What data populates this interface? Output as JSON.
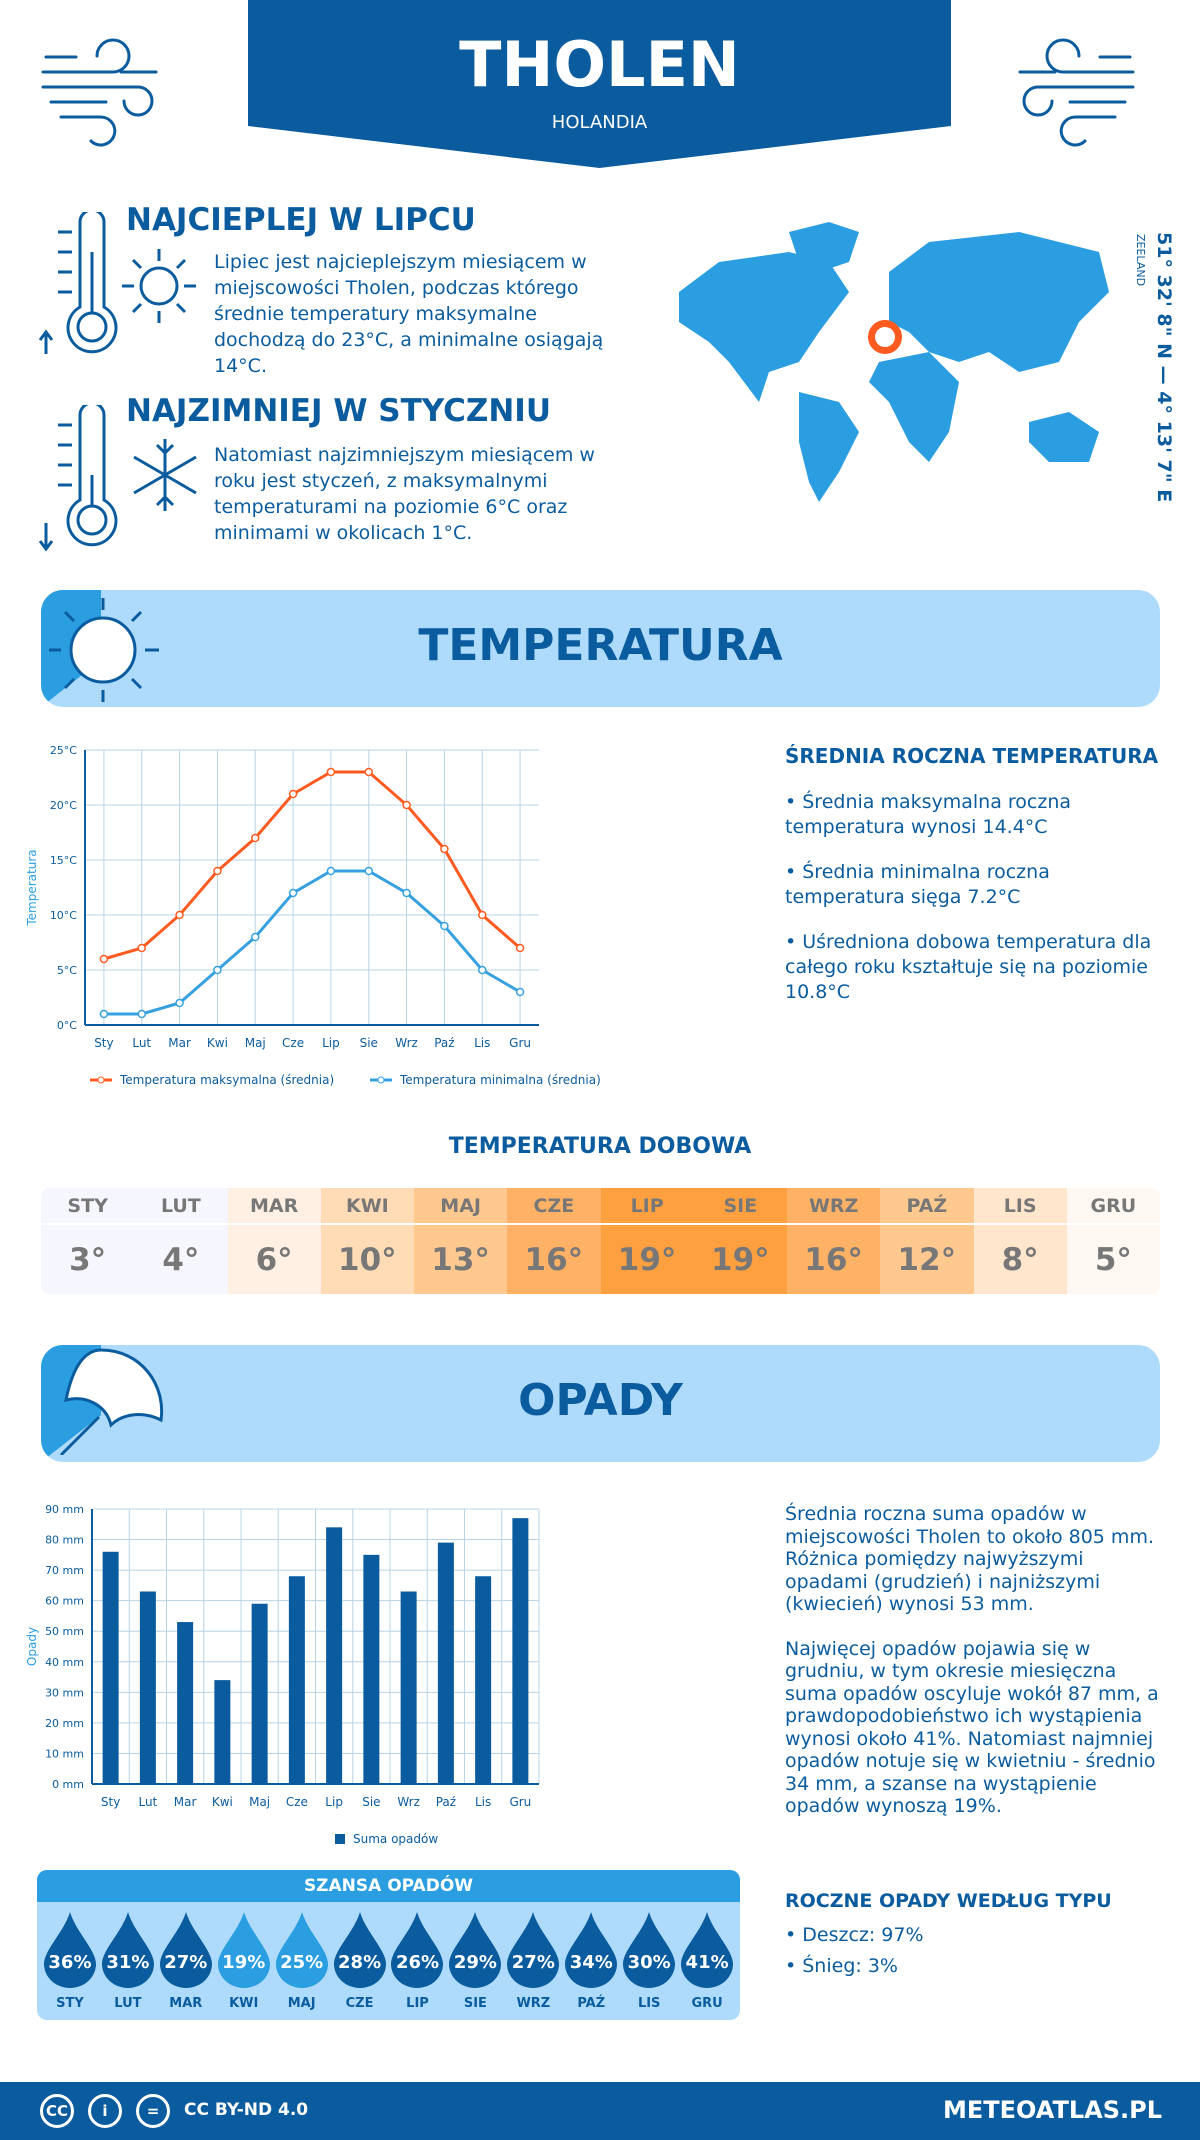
{
  "header": {
    "title": "THOLEN",
    "country": "HOLANDIA"
  },
  "warmest": {
    "title": "NAJCIEPLEJ W LIPCU",
    "text": "Lipiec jest najcieplejszym miesiącem w miejscowości Tholen, podczas którego średnie temperatury maksymalne dochodzą do 23°C, a minimalne osiągają 14°C."
  },
  "coldest": {
    "title": "NAJZIMNIEJ W STYCZNIU",
    "text": "Natomiast najzimniejszym miesiącem w roku jest styczeń, z maksymalnymi temperaturami na poziomie 6°C oraz minimami w okolicach 1°C."
  },
  "location": {
    "coords": "51° 32' 8\" N — 4° 13' 7\" E",
    "region": "ZEELAND"
  },
  "temperature": {
    "banner": "TEMPERATURA",
    "side_title": "ŚREDNIA ROCZNA TEMPERATURA",
    "bullets": [
      "• Średnia maksymalna roczna temperatura wynosi 14.4°C",
      "• Średnia minimalna roczna temperatura sięga 7.2°C",
      "• Uśredniona dobowa temperatura dla całego roku kształtuje się na poziomie 10.8°C"
    ]
  },
  "chart_data": [
    {
      "type": "line",
      "ylabel": "Temperatura",
      "categories": [
        "Sty",
        "Lut",
        "Mar",
        "Kwi",
        "Maj",
        "Cze",
        "Lip",
        "Sie",
        "Wrz",
        "Paź",
        "Lis",
        "Gru"
      ],
      "yticks": [
        "0°C",
        "5°C",
        "10°C",
        "15°C",
        "20°C",
        "25°C"
      ],
      "ylim": [
        0,
        25
      ],
      "grid": true,
      "legend": "bottom",
      "series": [
        {
          "name": "Temperatura maksymalna (średnia)",
          "color": "#ff5a1f",
          "values": [
            6,
            7,
            10,
            14,
            17,
            21,
            23,
            23,
            20,
            16,
            10,
            7
          ]
        },
        {
          "name": "Temperatura minimalna (średnia)",
          "color": "#36a0e0",
          "values": [
            1,
            1,
            2,
            5,
            8,
            12,
            14,
            14,
            12,
            9,
            5,
            3
          ]
        }
      ]
    },
    {
      "type": "bar",
      "ylabel": "Opady",
      "categories": [
        "Sty",
        "Lut",
        "Mar",
        "Kwi",
        "Maj",
        "Cze",
        "Lip",
        "Sie",
        "Wrz",
        "Paź",
        "Lis",
        "Gru"
      ],
      "yticks": [
        "0 mm",
        "10 mm",
        "20 mm",
        "30 mm",
        "40 mm",
        "50 mm",
        "60 mm",
        "70 mm",
        "80 mm",
        "90 mm"
      ],
      "ylim": [
        0,
        90
      ],
      "grid": true,
      "legend": "bottom",
      "series": [
        {
          "name": "Suma opadów",
          "color": "#0b5c9e",
          "values": [
            76,
            63,
            53,
            34,
            59,
            68,
            84,
            75,
            63,
            79,
            68,
            87
          ]
        }
      ]
    }
  ],
  "daily": {
    "title": "TEMPERATURA DOBOWA",
    "months": [
      {
        "m": "STY",
        "v": "3°",
        "c": "#f6f6fe"
      },
      {
        "m": "LUT",
        "v": "4°",
        "c": "#f6f6fe"
      },
      {
        "m": "MAR",
        "v": "6°",
        "c": "#fff0e3"
      },
      {
        "m": "KWI",
        "v": "10°",
        "c": "#ffdbb6"
      },
      {
        "m": "MAJ",
        "v": "13°",
        "c": "#ffc88e"
      },
      {
        "m": "CZE",
        "v": "16°",
        "c": "#ffb266"
      },
      {
        "m": "LIP",
        "v": "19°",
        "c": "#ffa040"
      },
      {
        "m": "SIE",
        "v": "19°",
        "c": "#ffa040"
      },
      {
        "m": "WRZ",
        "v": "16°",
        "c": "#ffb266"
      },
      {
        "m": "PAŹ",
        "v": "12°",
        "c": "#ffc88e"
      },
      {
        "m": "LIS",
        "v": "8°",
        "c": "#ffe6cd"
      },
      {
        "m": "GRU",
        "v": "5°",
        "c": "#fff8f2"
      }
    ]
  },
  "precip": {
    "banner": "OPADY",
    "text1": "Średnia roczna suma opadów w miejscowości Tholen to około 805 mm. Różnica pomiędzy najwyższymi opadami (grudzień) i najniższymi (kwiecień) wynosi 53 mm.",
    "text2": "Najwięcej opadów pojawia się w grudniu, w tym okresie miesięczna suma opadów oscyluje wokół 87 mm, a prawdopodobieństwo ich wystąpienia wynosi około 41%. Natomiast najmniej opadów notuje się w kwietniu - średnio 34 mm, a szanse na wystąpienie opadów wynoszą 19%.",
    "type_title": "ROCZNE OPADY WEDŁUG TYPU",
    "types": [
      "• Deszcz: 97%",
      "• Śnieg: 3%"
    ]
  },
  "chance": {
    "title": "SZANSA OPADÓW",
    "items": [
      {
        "m": "STY",
        "v": "36%"
      },
      {
        "m": "LUT",
        "v": "31%"
      },
      {
        "m": "MAR",
        "v": "27%"
      },
      {
        "m": "KWI",
        "v": "19%",
        "light": true
      },
      {
        "m": "MAJ",
        "v": "25%",
        "light": true
      },
      {
        "m": "CZE",
        "v": "28%"
      },
      {
        "m": "LIP",
        "v": "26%"
      },
      {
        "m": "SIE",
        "v": "29%"
      },
      {
        "m": "WRZ",
        "v": "27%"
      },
      {
        "m": "PAŹ",
        "v": "34%"
      },
      {
        "m": "LIS",
        "v": "30%"
      },
      {
        "m": "GRU",
        "v": "41%"
      }
    ]
  },
  "footer": {
    "license": "CC BY-ND 4.0",
    "site": "METEOATLAS.PL",
    "cc_icons": [
      "CC",
      "i",
      "="
    ]
  },
  "colors": {
    "dark_blue": "#0b5c9e",
    "light_blue": "#2a9ee0",
    "banner": "#aedbfc",
    "orange": "#ff5a1f"
  }
}
